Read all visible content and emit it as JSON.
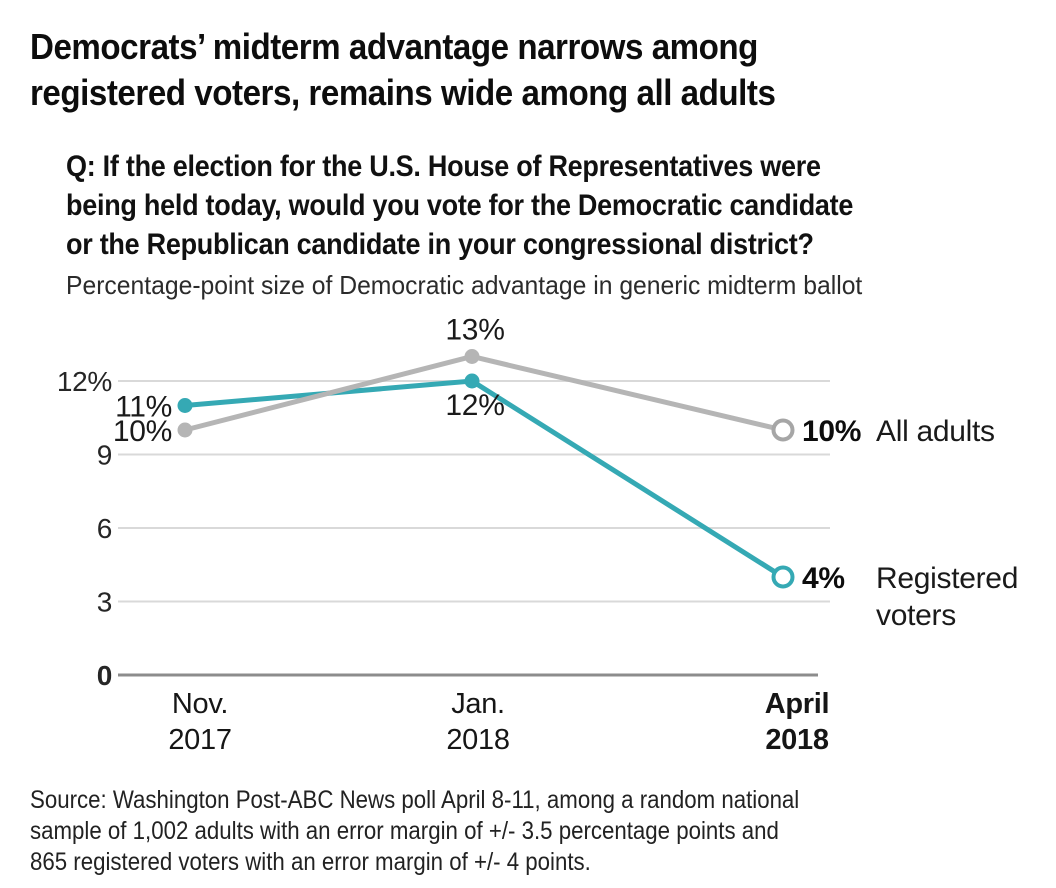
{
  "header": {
    "title_lines": [
      "Democrats’ midterm advantage narrows among",
      "registered voters, remains wide among all adults"
    ]
  },
  "question": {
    "lines": [
      "Q: If the election for the U.S. House of Representatives were",
      "being held today, would you vote for the Democratic candidate",
      "or the Republican candidate in your congressional district?"
    ]
  },
  "subtitle": "Percentage-point size of Democratic advantage in generic midterm ballot",
  "source": {
    "lines": [
      "Source: Washington Post-ABC News poll April 8-11, among a random national",
      "sample of 1,002 adults with an error margin of +/- 3.5 percentage points and",
      "865 registered voters with an error margin of +/- 4 points."
    ]
  },
  "colors": {
    "teal": "#35a9b4",
    "gray": "#b5b5b5",
    "gray_ring": "#a6a6a6",
    "gridline": "#d9d9d9",
    "axis": "#8c8c8c",
    "text": "#1a1a1a"
  },
  "chart_data": {
    "type": "line",
    "title": "Percentage-point size of Democratic advantage in generic midterm ballot",
    "categories": [
      "Nov. 2017",
      "Jan. 2018",
      "April 2018"
    ],
    "x_ticks": [
      {
        "lines": [
          "Nov.",
          "2017"
        ],
        "bold": false
      },
      {
        "lines": [
          "Jan.",
          "2018"
        ],
        "bold": false
      },
      {
        "lines": [
          "April",
          "2018"
        ],
        "bold": true
      }
    ],
    "yticks": [
      {
        "value": 0,
        "label": "0",
        "bold": true
      },
      {
        "value": 3,
        "label": "3",
        "bold": false
      },
      {
        "value": 6,
        "label": "6",
        "bold": false
      },
      {
        "value": 9,
        "label": "9",
        "bold": false
      },
      {
        "value": 12,
        "label": "12%",
        "bold": false
      }
    ],
    "ylim": [
      0,
      14
    ],
    "grid": true,
    "legend_position": "right-of-last-point",
    "series": [
      {
        "name": "All adults",
        "name_lines": [
          "All adults"
        ],
        "values": [
          10,
          13,
          10
        ],
        "point_labels": [
          "10%",
          "13%",
          "10%"
        ],
        "label_positions": [
          "left",
          "above",
          "end"
        ],
        "color": "#b5b5b5",
        "end_ring_color": "#a6a6a6"
      },
      {
        "name": "Registered voters",
        "name_lines": [
          "Registered",
          "voters"
        ],
        "values": [
          11,
          12,
          4
        ],
        "point_labels": [
          "11%",
          "12%",
          "4%"
        ],
        "label_positions": [
          "left",
          "below",
          "end"
        ],
        "color": "#35a9b4",
        "end_ring_color": "#35a9b4"
      }
    ]
  }
}
